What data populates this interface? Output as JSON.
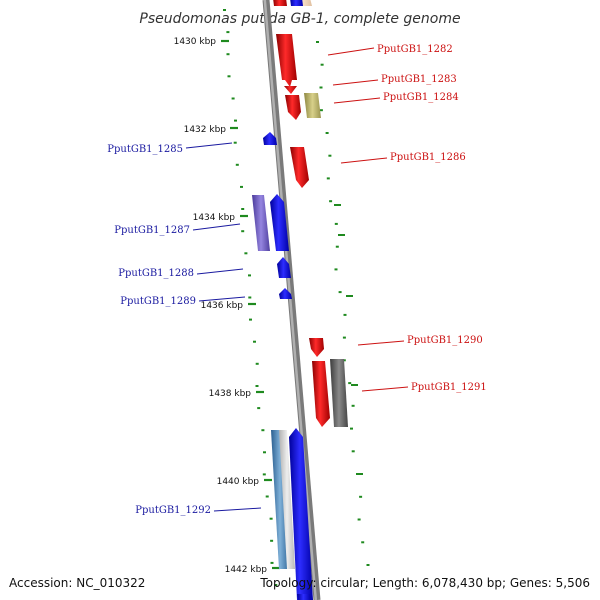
{
  "title": "Pseudomonas putida GB-1, complete genome",
  "ticks": [
    "1430 kbp",
    "1432 kbp",
    "1434 kbp",
    "1436 kbp",
    "1438 kbp",
    "1440 kbp",
    "1442 kbp"
  ],
  "genes": [
    {
      "label": "PputGB1_1282",
      "strand": "forward"
    },
    {
      "label": "PputGB1_1283",
      "strand": "forward"
    },
    {
      "label": "PputGB1_1284",
      "strand": "forward"
    },
    {
      "label": "PputGB1_1285",
      "strand": "reverse"
    },
    {
      "label": "PputGB1_1286",
      "strand": "forward"
    },
    {
      "label": "PputGB1_1287",
      "strand": "reverse"
    },
    {
      "label": "PputGB1_1288",
      "strand": "reverse"
    },
    {
      "label": "PputGB1_1289",
      "strand": "reverse"
    },
    {
      "label": "PputGB1_1290",
      "strand": "forward"
    },
    {
      "label": "PputGB1_1291",
      "strand": "forward"
    },
    {
      "label": "PputGB1_1292",
      "strand": "reverse"
    }
  ],
  "footer": {
    "accession": "Accession: NC_010322",
    "topology": "Topology: circular; Length: 6,078,430 bp; Genes: 5,506"
  },
  "colors": {
    "forward": "#e8201e",
    "reverse": "#2a1ee0",
    "forward_label": "#cc1111",
    "reverse_label": "#1a1aa0",
    "backbone": "#8a8a8a",
    "gc_track": "#1f8a1f",
    "cog_olive": "#bdb56a",
    "cog_gray": "#707070",
    "cog_purple": "#7060c0",
    "cog_steel": "#4a7fb0"
  }
}
